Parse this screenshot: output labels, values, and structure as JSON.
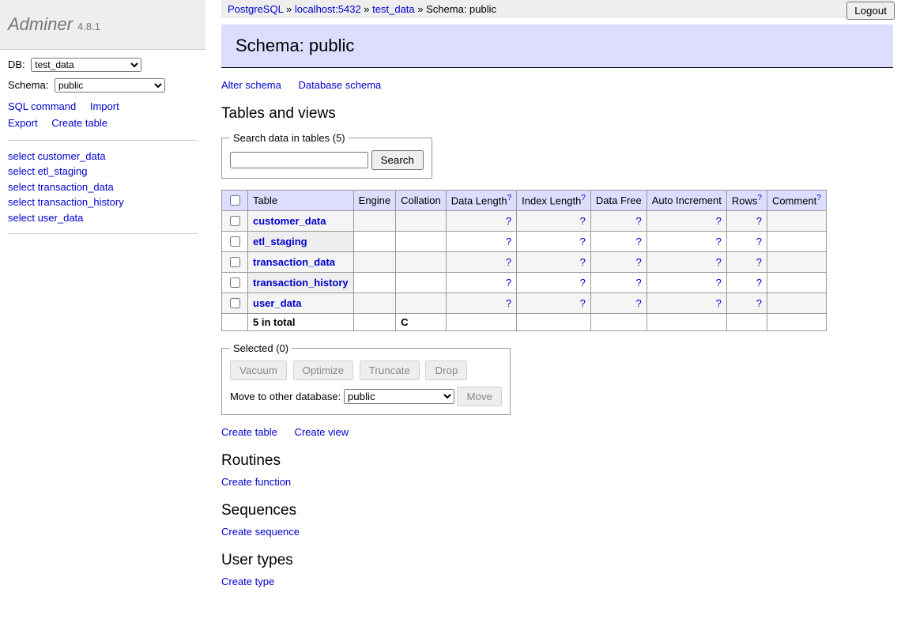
{
  "colors": {
    "link": "#0000cc",
    "header_bg": "#ddddff",
    "menu_bg": "#eeeeee",
    "border": "#999999",
    "header_border": "#000000"
  },
  "logo": {
    "name": "Adminer",
    "version": "4.8.1"
  },
  "breadcrumb": {
    "driver": "PostgreSQL",
    "server": "localhost:5432",
    "database": "test_data",
    "schema_label": "Schema: public",
    "separator": "»"
  },
  "logout": "Logout",
  "sidebar": {
    "db_label": "DB:",
    "db_value": "test_data",
    "schema_label": "Schema:",
    "schema_value": "public",
    "links": {
      "sql": "SQL command",
      "import": "Import",
      "export": "Export",
      "create_table": "Create table"
    },
    "tables": [
      "select customer_data",
      "select etl_staging",
      "select transaction_data",
      "select transaction_history",
      "select user_data"
    ]
  },
  "page_title": "Schema: public",
  "schema_links": {
    "alter": "Alter schema",
    "database_schema": "Database schema"
  },
  "tables_heading": "Tables and views",
  "search_fieldset": {
    "legend": "Search data in tables (5)",
    "button": "Search"
  },
  "table": {
    "headers": {
      "table": "Table",
      "engine": "Engine",
      "collation": "Collation",
      "data_length": "Data Length",
      "index_length": "Index Length",
      "data_free": "Data Free",
      "auto_increment": "Auto Increment",
      "rows": "Rows",
      "comment": "Comment"
    },
    "rows": [
      {
        "name": "customer_data"
      },
      {
        "name": "etl_staging"
      },
      {
        "name": "transaction_data"
      },
      {
        "name": "transaction_history"
      },
      {
        "name": "user_data"
      }
    ],
    "unknown": "?",
    "footer": {
      "label": "5 in total",
      "collation": "C"
    }
  },
  "selected_fieldset": {
    "legend": "Selected (0)",
    "vacuum": "Vacuum",
    "optimize": "Optimize",
    "truncate": "Truncate",
    "drop": "Drop",
    "move_label": "Move to other database:",
    "move_value": "public",
    "move_button": "Move"
  },
  "create_links": {
    "create_table": "Create table",
    "create_view": "Create view"
  },
  "routines": {
    "heading": "Routines",
    "create_function": "Create function"
  },
  "sequences": {
    "heading": "Sequences",
    "create_sequence": "Create sequence"
  },
  "user_types": {
    "heading": "User types",
    "create_type": "Create type"
  }
}
